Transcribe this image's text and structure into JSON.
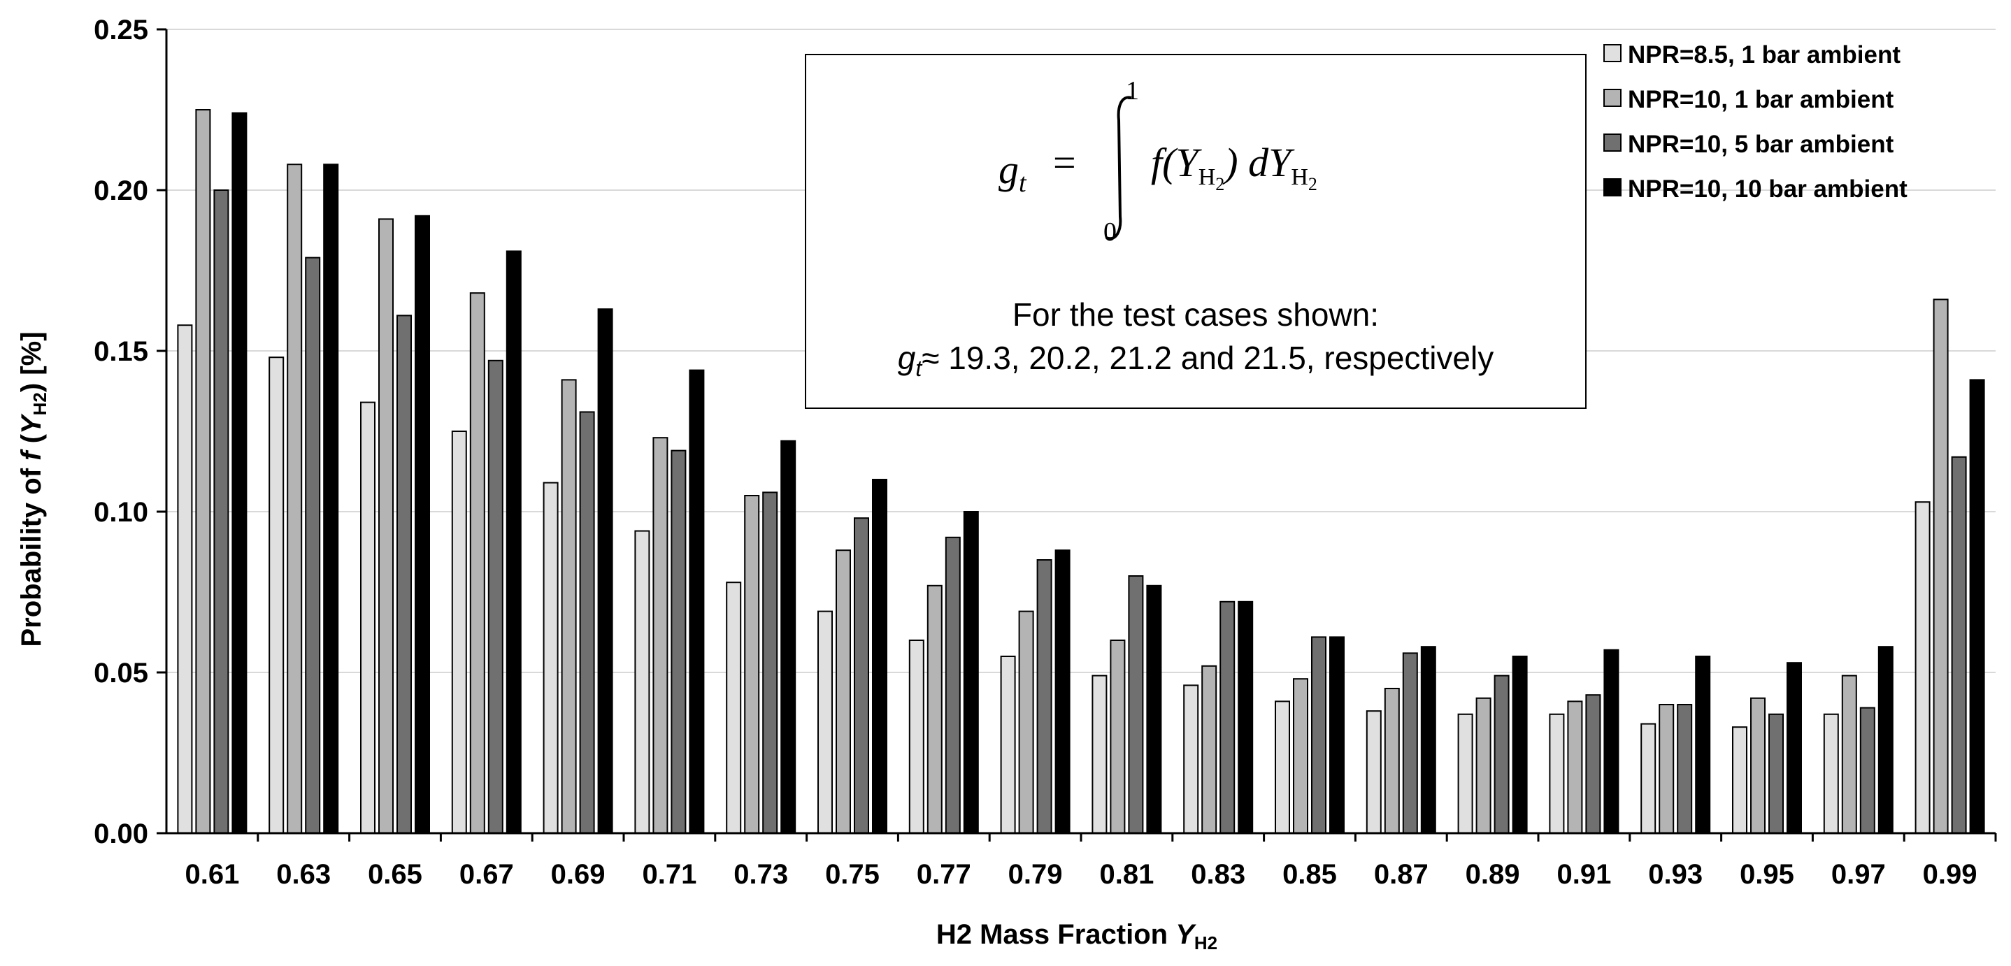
{
  "chart_data": {
    "type": "bar",
    "title": "",
    "xlabel": "H2 Mass Fraction",
    "xlabel_symbol": "Y",
    "xlabel_subscript": "H2",
    "ylabel": "Probability of",
    "ylabel_func": "f",
    "ylabel_symbol": "Y",
    "ylabel_subscript": "H2",
    "ylabel_unit": "[%]",
    "ylim": [
      0,
      0.25
    ],
    "yticks": [
      "0.00",
      "0.05",
      "0.10",
      "0.15",
      "0.20",
      "0.25"
    ],
    "grid": true,
    "legend_position": "top-right",
    "categories": [
      "0.61",
      "0.63",
      "0.65",
      "0.67",
      "0.69",
      "0.71",
      "0.73",
      "0.75",
      "0.77",
      "0.79",
      "0.81",
      "0.83",
      "0.85",
      "0.87",
      "0.89",
      "0.91",
      "0.93",
      "0.95",
      "0.97",
      "0.99"
    ],
    "series": [
      {
        "name": "NPR=8.5, 1 bar ambient",
        "color": "#e0e0e0",
        "values": [
          0.158,
          0.148,
          0.134,
          0.125,
          0.109,
          0.094,
          0.078,
          0.069,
          0.06,
          0.055,
          0.049,
          0.046,
          0.041,
          0.038,
          0.037,
          0.037,
          0.034,
          0.033,
          0.037,
          0.103
        ]
      },
      {
        "name": "NPR=10, 1 bar ambient",
        "color": "#b4b4b4",
        "values": [
          0.225,
          0.208,
          0.191,
          0.168,
          0.141,
          0.123,
          0.105,
          0.088,
          0.077,
          0.069,
          0.06,
          0.052,
          0.048,
          0.045,
          0.042,
          0.041,
          0.04,
          0.042,
          0.049,
          0.166
        ]
      },
      {
        "name": "NPR=10, 5 bar ambient",
        "color": "#707070",
        "values": [
          0.2,
          0.179,
          0.161,
          0.147,
          0.131,
          0.119,
          0.106,
          0.098,
          0.092,
          0.085,
          0.08,
          0.072,
          0.061,
          0.056,
          0.049,
          0.043,
          0.04,
          0.037,
          0.039,
          0.117
        ]
      },
      {
        "name": "NPR=10, 10 bar ambient",
        "color": "#000000",
        "values": [
          0.224,
          0.208,
          0.192,
          0.181,
          0.163,
          0.144,
          0.122,
          0.11,
          0.1,
          0.088,
          0.077,
          0.072,
          0.061,
          0.058,
          0.055,
          0.057,
          0.055,
          0.053,
          0.058,
          0.141
        ]
      }
    ],
    "annotation": {
      "formula_lhs": "g",
      "formula_lhs_sub": "t",
      "formula_upper": "1",
      "formula_lower": "0",
      "formula_rhs": "f(Y",
      "formula_rhs_sub": "H",
      "formula_rhs_sub2": "2",
      "formula_rhs_close": ") dY",
      "line1": "For the test cases shown:",
      "line2_symbol": "g",
      "line2_symbol_sub": "t",
      "line2_rest": "≈ 19.3, 20.2, 21.2 and 21.5, respectively"
    }
  }
}
